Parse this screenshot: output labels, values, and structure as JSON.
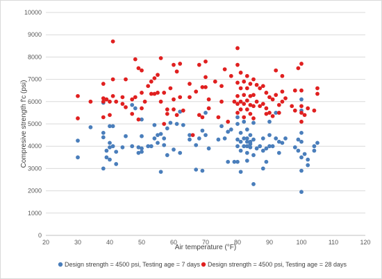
{
  "chart_data": {
    "type": "scatter",
    "title": "",
    "xlabel": "Air temperature (°F)",
    "ylabel": "Compresive strength f'c (psi)",
    "xlim": [
      20,
      120
    ],
    "ylim": [
      0,
      10000
    ],
    "x_ticks": [
      20,
      30,
      40,
      50,
      60,
      70,
      80,
      90,
      100,
      110,
      120
    ],
    "y_ticks": [
      0,
      1000,
      2000,
      3000,
      4000,
      5000,
      6000,
      7000,
      8000,
      9000,
      10000
    ],
    "grid": "horizontal",
    "legend_position": "bottom",
    "series": [
      {
        "name": "Design strength = 4500 psi, Testing age = 7 days",
        "color": "#4a7ebb",
        "marker": "circle",
        "points": [
          [
            30,
            4250
          ],
          [
            30,
            3500
          ],
          [
            34,
            4850
          ],
          [
            38,
            5950
          ],
          [
            38,
            4600
          ],
          [
            38,
            4400
          ],
          [
            38,
            3000
          ],
          [
            39,
            3800
          ],
          [
            39,
            3500
          ],
          [
            40,
            4900
          ],
          [
            40,
            4150
          ],
          [
            40,
            3950
          ],
          [
            40,
            3400
          ],
          [
            41,
            4900
          ],
          [
            41,
            4000
          ],
          [
            42,
            3750
          ],
          [
            42,
            3200
          ],
          [
            44,
            3950
          ],
          [
            45,
            4450
          ],
          [
            47,
            5850
          ],
          [
            47,
            4000
          ],
          [
            48,
            5700
          ],
          [
            49,
            3950
          ],
          [
            49,
            3700
          ],
          [
            50,
            5200
          ],
          [
            50,
            4450
          ],
          [
            50,
            3900
          ],
          [
            50,
            3750
          ],
          [
            52,
            4000
          ],
          [
            53,
            4000
          ],
          [
            54,
            4950
          ],
          [
            54,
            4350
          ],
          [
            55,
            4500
          ],
          [
            55,
            4150
          ],
          [
            56,
            4550
          ],
          [
            56,
            2850
          ],
          [
            57,
            4350
          ],
          [
            57,
            4050
          ],
          [
            58,
            4800
          ],
          [
            58,
            3600
          ],
          [
            59,
            5050
          ],
          [
            60,
            3850
          ],
          [
            61,
            5000
          ],
          [
            62,
            5550
          ],
          [
            62,
            3700
          ],
          [
            63,
            4950
          ],
          [
            65,
            4500
          ],
          [
            65,
            4300
          ],
          [
            67,
            4050
          ],
          [
            67,
            2950
          ],
          [
            68,
            4350
          ],
          [
            69,
            4700
          ],
          [
            69,
            2900
          ],
          [
            70,
            5500
          ],
          [
            70,
            4500
          ],
          [
            71,
            3900
          ],
          [
            74,
            4300
          ],
          [
            75,
            4900
          ],
          [
            76,
            4350
          ],
          [
            77,
            4650
          ],
          [
            77,
            3300
          ],
          [
            78,
            4750
          ],
          [
            79,
            3300
          ],
          [
            80,
            5300
          ],
          [
            80,
            5000
          ],
          [
            80,
            4300
          ],
          [
            80,
            4000
          ],
          [
            80,
            3300
          ],
          [
            81,
            4600
          ],
          [
            81,
            4200
          ],
          [
            81,
            3800
          ],
          [
            81,
            2850
          ],
          [
            82,
            5100
          ],
          [
            82,
            4350
          ],
          [
            82,
            4000
          ],
          [
            83,
            4750
          ],
          [
            83,
            4350
          ],
          [
            83,
            4200
          ],
          [
            83,
            4000
          ],
          [
            83,
            3700
          ],
          [
            83,
            3350
          ],
          [
            84,
            4500
          ],
          [
            84,
            4200
          ],
          [
            84,
            4100
          ],
          [
            84,
            3950
          ],
          [
            85,
            5050
          ],
          [
            85,
            4300
          ],
          [
            85,
            3600
          ],
          [
            85,
            2300
          ],
          [
            86,
            3900
          ],
          [
            87,
            4000
          ],
          [
            88,
            4350
          ],
          [
            88,
            3800
          ],
          [
            88,
            3000
          ],
          [
            89,
            3900
          ],
          [
            89,
            3300
          ],
          [
            90,
            5100
          ],
          [
            90,
            4500
          ],
          [
            90,
            4000
          ],
          [
            91,
            4000
          ],
          [
            92,
            5500
          ],
          [
            92,
            4350
          ],
          [
            93,
            4200
          ],
          [
            93,
            3700
          ],
          [
            94,
            4150
          ],
          [
            95,
            4350
          ],
          [
            98,
            3950
          ],
          [
            99,
            4300
          ],
          [
            99,
            3800
          ],
          [
            100,
            6100
          ],
          [
            100,
            5600
          ],
          [
            100,
            4600
          ],
          [
            100,
            4200
          ],
          [
            100,
            3500
          ],
          [
            100,
            2900
          ],
          [
            100,
            1950
          ],
          [
            101,
            3650
          ],
          [
            102,
            3400
          ],
          [
            102,
            3150
          ],
          [
            104,
            3800
          ],
          [
            104,
            4000
          ],
          [
            105,
            4150
          ]
        ]
      },
      {
        "name": "Design strength = 4500 psi, Testing age = 28 days",
        "color": "#e02020",
        "marker": "circle",
        "points": [
          [
            30,
            6250
          ],
          [
            30,
            5250
          ],
          [
            34,
            6000
          ],
          [
            38,
            6800
          ],
          [
            38,
            6150
          ],
          [
            38,
            6000
          ],
          [
            38,
            5300
          ],
          [
            39,
            6100
          ],
          [
            40,
            6000
          ],
          [
            40,
            5400
          ],
          [
            41,
            8700
          ],
          [
            41,
            7000
          ],
          [
            41,
            6250
          ],
          [
            42,
            6000
          ],
          [
            44,
            6200
          ],
          [
            44,
            5900
          ],
          [
            45,
            7000
          ],
          [
            45,
            5750
          ],
          [
            47,
            6100
          ],
          [
            47,
            5450
          ],
          [
            48,
            7900
          ],
          [
            48,
            6200
          ],
          [
            49,
            7500
          ],
          [
            49,
            5200
          ],
          [
            50,
            7400
          ],
          [
            50,
            6400
          ],
          [
            50,
            5700
          ],
          [
            51,
            6000
          ],
          [
            52,
            6700
          ],
          [
            53,
            6900
          ],
          [
            53,
            6350
          ],
          [
            54,
            7050
          ],
          [
            54,
            6350
          ],
          [
            55,
            7200
          ],
          [
            55,
            6400
          ],
          [
            56,
            7950
          ],
          [
            56,
            6000
          ],
          [
            57,
            6400
          ],
          [
            57,
            5000
          ],
          [
            58,
            5650
          ],
          [
            58,
            5450
          ],
          [
            59,
            6600
          ],
          [
            60,
            7650
          ],
          [
            60,
            6100
          ],
          [
            60,
            5650
          ],
          [
            61,
            7350
          ],
          [
            61,
            5400
          ],
          [
            62,
            7700
          ],
          [
            62,
            6200
          ],
          [
            63,
            5600
          ],
          [
            65,
            6800
          ],
          [
            65,
            6200
          ],
          [
            66,
            4500
          ],
          [
            67,
            6450
          ],
          [
            68,
            7650
          ],
          [
            68,
            5400
          ],
          [
            69,
            6650
          ],
          [
            69,
            5300
          ],
          [
            70,
            7800
          ],
          [
            70,
            7100
          ],
          [
            70,
            6650
          ],
          [
            71,
            6100
          ],
          [
            71,
            5700
          ],
          [
            73,
            6900
          ],
          [
            74,
            5300
          ],
          [
            75,
            6700
          ],
          [
            75,
            6000
          ],
          [
            76,
            7450
          ],
          [
            77,
            5100
          ],
          [
            78,
            7150
          ],
          [
            79,
            6000
          ],
          [
            80,
            8400
          ],
          [
            80,
            7650
          ],
          [
            80,
            6850
          ],
          [
            80,
            6250
          ],
          [
            80,
            5900
          ],
          [
            80,
            5500
          ],
          [
            81,
            7300
          ],
          [
            81,
            6600
          ],
          [
            81,
            6000
          ],
          [
            81,
            5650
          ],
          [
            82,
            6900
          ],
          [
            82,
            6300
          ],
          [
            82,
            5900
          ],
          [
            82,
            5300
          ],
          [
            83,
            7150
          ],
          [
            83,
            6600
          ],
          [
            83,
            6050
          ],
          [
            83,
            5650
          ],
          [
            84,
            6800
          ],
          [
            84,
            6250
          ],
          [
            84,
            5850
          ],
          [
            84,
            5450
          ],
          [
            85,
            7000
          ],
          [
            85,
            6300
          ],
          [
            85,
            5800
          ],
          [
            85,
            5250
          ],
          [
            86,
            6750
          ],
          [
            86,
            6000
          ],
          [
            87,
            6600
          ],
          [
            87,
            5800
          ],
          [
            88,
            6700
          ],
          [
            88,
            5900
          ],
          [
            89,
            6400
          ],
          [
            89,
            5700
          ],
          [
            89,
            5450
          ],
          [
            90,
            6200
          ],
          [
            90,
            5500
          ],
          [
            91,
            6100
          ],
          [
            91,
            5350
          ],
          [
            92,
            7400
          ],
          [
            92,
            6300
          ],
          [
            93,
            5850
          ],
          [
            93,
            5500
          ],
          [
            94,
            7150
          ],
          [
            94,
            6450
          ],
          [
            94,
            6000
          ],
          [
            95,
            6150
          ],
          [
            97,
            5800
          ],
          [
            98,
            6500
          ],
          [
            98,
            5600
          ],
          [
            99,
            7500
          ],
          [
            100,
            7700
          ],
          [
            100,
            6500
          ],
          [
            100,
            5800
          ],
          [
            100,
            5500
          ],
          [
            100,
            5100
          ],
          [
            101,
            5400
          ],
          [
            102,
            5700
          ],
          [
            104,
            5600
          ],
          [
            105,
            6600
          ],
          [
            105,
            6350
          ]
        ]
      }
    ]
  }
}
